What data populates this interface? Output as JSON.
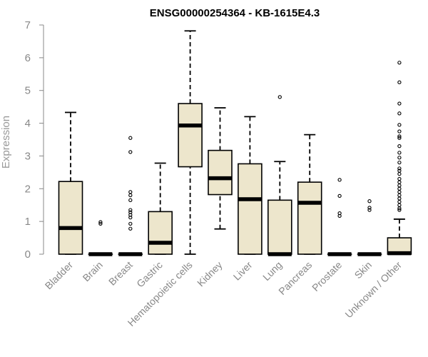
{
  "chart_data": {
    "type": "boxplot",
    "title": "ENSG00000254364 - KB-1615E4.3",
    "xlabel": "",
    "ylabel": "Expression",
    "ylim": [
      0,
      7
    ],
    "yticks": [
      0,
      1,
      2,
      3,
      4,
      5,
      6,
      7
    ],
    "box_fill": "#ede6cc",
    "box_stroke": "#000000",
    "categories": [
      "Bladder",
      "Brain",
      "Breast",
      "Gastric",
      "Hematopoietic cells",
      "Kidney",
      "Liver",
      "Lung",
      "Pancreas",
      "Prostate",
      "Skin",
      "Unknown / Other"
    ],
    "boxes": [
      {
        "name": "Bladder",
        "whisker_low": 0,
        "q1": 0,
        "median": 0.8,
        "q3": 2.22,
        "whisker_high": 4.33,
        "outliers": []
      },
      {
        "name": "Brain",
        "whisker_low": 0,
        "q1": 0,
        "median": 0,
        "q3": 0,
        "whisker_high": 0,
        "outliers": [
          0.93,
          0.98
        ]
      },
      {
        "name": "Breast",
        "whisker_low": 0,
        "q1": 0,
        "median": 0,
        "q3": 0,
        "whisker_high": 0,
        "outliers": [
          0.78,
          0.93,
          1.12,
          1.2,
          1.28,
          1.35,
          1.65,
          1.8,
          1.9,
          3.12,
          3.55
        ]
      },
      {
        "name": "Gastric",
        "whisker_low": 0,
        "q1": 0,
        "median": 0.35,
        "q3": 1.3,
        "whisker_high": 2.78,
        "outliers": []
      },
      {
        "name": "Hematopoietic cells",
        "whisker_low": 0,
        "q1": 2.67,
        "median": 3.93,
        "q3": 4.6,
        "whisker_high": 6.82,
        "outliers": []
      },
      {
        "name": "Kidney",
        "whisker_low": 0.77,
        "q1": 1.82,
        "median": 2.32,
        "q3": 3.17,
        "whisker_high": 4.47,
        "outliers": []
      },
      {
        "name": "Liver",
        "whisker_low": 0,
        "q1": 0,
        "median": 1.68,
        "q3": 2.76,
        "whisker_high": 4.2,
        "outliers": []
      },
      {
        "name": "Lung",
        "whisker_low": 0,
        "q1": 0,
        "median": 0,
        "q3": 1.65,
        "whisker_high": 2.83,
        "outliers": [
          4.8
        ]
      },
      {
        "name": "Pancreas",
        "whisker_low": 0,
        "q1": 0,
        "median": 1.57,
        "q3": 2.2,
        "whisker_high": 3.65,
        "outliers": []
      },
      {
        "name": "Prostate",
        "whisker_low": 0,
        "q1": 0,
        "median": 0,
        "q3": 0,
        "whisker_high": 0,
        "outliers": [
          1.17,
          1.25,
          1.78,
          2.27
        ]
      },
      {
        "name": "Skin",
        "whisker_low": 0,
        "q1": 0,
        "median": 0,
        "q3": 0,
        "whisker_high": 0,
        "outliers": [
          1.35,
          1.42,
          1.62
        ]
      },
      {
        "name": "Unknown / Other",
        "whisker_low": 0,
        "q1": 0,
        "median": 0.03,
        "q3": 0.5,
        "whisker_high": 1.07,
        "outliers": [
          1.35,
          1.4,
          1.5,
          1.6,
          1.7,
          1.8,
          1.9,
          2.0,
          2.1,
          2.2,
          2.3,
          2.45,
          2.55,
          2.62,
          2.8,
          2.95,
          3.1,
          3.3,
          3.55,
          3.6,
          3.75,
          3.95,
          4.3,
          4.6,
          5.25,
          5.85
        ]
      }
    ]
  }
}
